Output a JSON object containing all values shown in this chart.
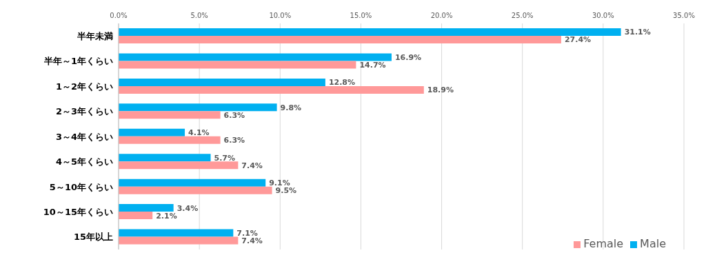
{
  "chart_data": {
    "type": "bar",
    "orientation": "horizontal",
    "categories": [
      "半年未満",
      "半年～1年くらい",
      "1～2年くらい",
      "2～3年くらい",
      "3～4年くらい",
      "4～5年くらい",
      "5～10年くらい",
      "10～15年くらい",
      "15年以上"
    ],
    "series": [
      {
        "name": "Male",
        "color": "#00b0f0",
        "values": [
          31.1,
          16.9,
          12.8,
          9.8,
          4.1,
          5.7,
          9.1,
          3.4,
          7.1
        ],
        "value_labels": [
          "31.1%",
          "16.9%",
          "12.8%",
          "9.8%",
          "4.1%",
          "5.7%",
          "9.1%",
          "3.4%",
          "7.1%"
        ]
      },
      {
        "name": "Female",
        "color": "#ff9999",
        "values": [
          27.4,
          14.7,
          18.9,
          6.3,
          6.3,
          7.4,
          9.5,
          2.1,
          7.4
        ],
        "value_labels": [
          "27.4%",
          "14.7%",
          "18.9%",
          "6.3%",
          "6.3%",
          "7.4%",
          "9.5%",
          "2.1%",
          "7.4%"
        ]
      }
    ],
    "xlim": [
      0,
      35
    ],
    "xticks": [
      {
        "value": 0,
        "label": "0.0%"
      },
      {
        "value": 5,
        "label": "5.0%"
      },
      {
        "value": 10,
        "label": "10.0%"
      },
      {
        "value": 15,
        "label": "15.0%"
      },
      {
        "value": 20,
        "label": "20.0%"
      },
      {
        "value": 25,
        "label": "25.0%"
      },
      {
        "value": 30,
        "label": "30.0%"
      },
      {
        "value": 35,
        "label": "35.0%"
      }
    ],
    "grid": "x",
    "legend": "bottom right"
  }
}
